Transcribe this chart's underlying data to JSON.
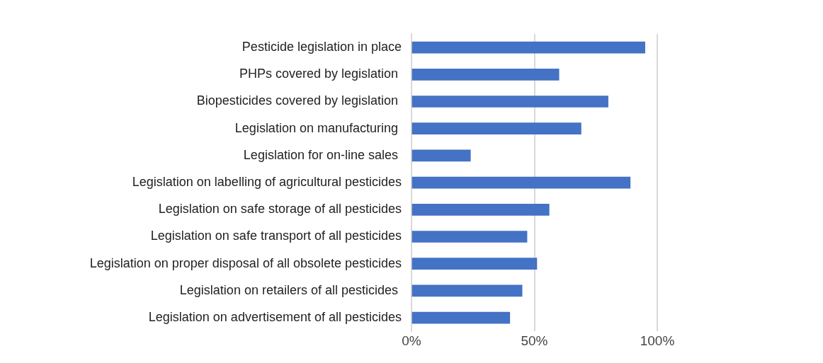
{
  "chart_data": {
    "type": "bar",
    "orientation": "horizontal",
    "categories": [
      "Pesticide legislation in place",
      "PHPs covered by legislation ",
      "Biopesticides covered by legislation ",
      "Legislation on manufacturing ",
      "Legislation for on-line sales ",
      "Legislation on labelling of agricultural pesticides",
      "Legislation on safe storage of all pesticides",
      "Legislation on safe transport of all pesticides",
      "Legislation on proper disposal of all obsolete pesticides",
      "Legislation on retailers of all pesticides ",
      "Legislation on advertisement of all pesticides"
    ],
    "values": [
      95,
      60,
      80,
      69,
      24,
      89,
      56,
      47,
      51,
      45,
      40
    ],
    "color": "#4472c4",
    "xlim": [
      0,
      100
    ],
    "xticks": [
      {
        "value": 0,
        "label": "0%"
      },
      {
        "value": 50,
        "label": "50%"
      },
      {
        "value": 100,
        "label": "100%"
      }
    ],
    "grid": "x",
    "legend": false
  }
}
